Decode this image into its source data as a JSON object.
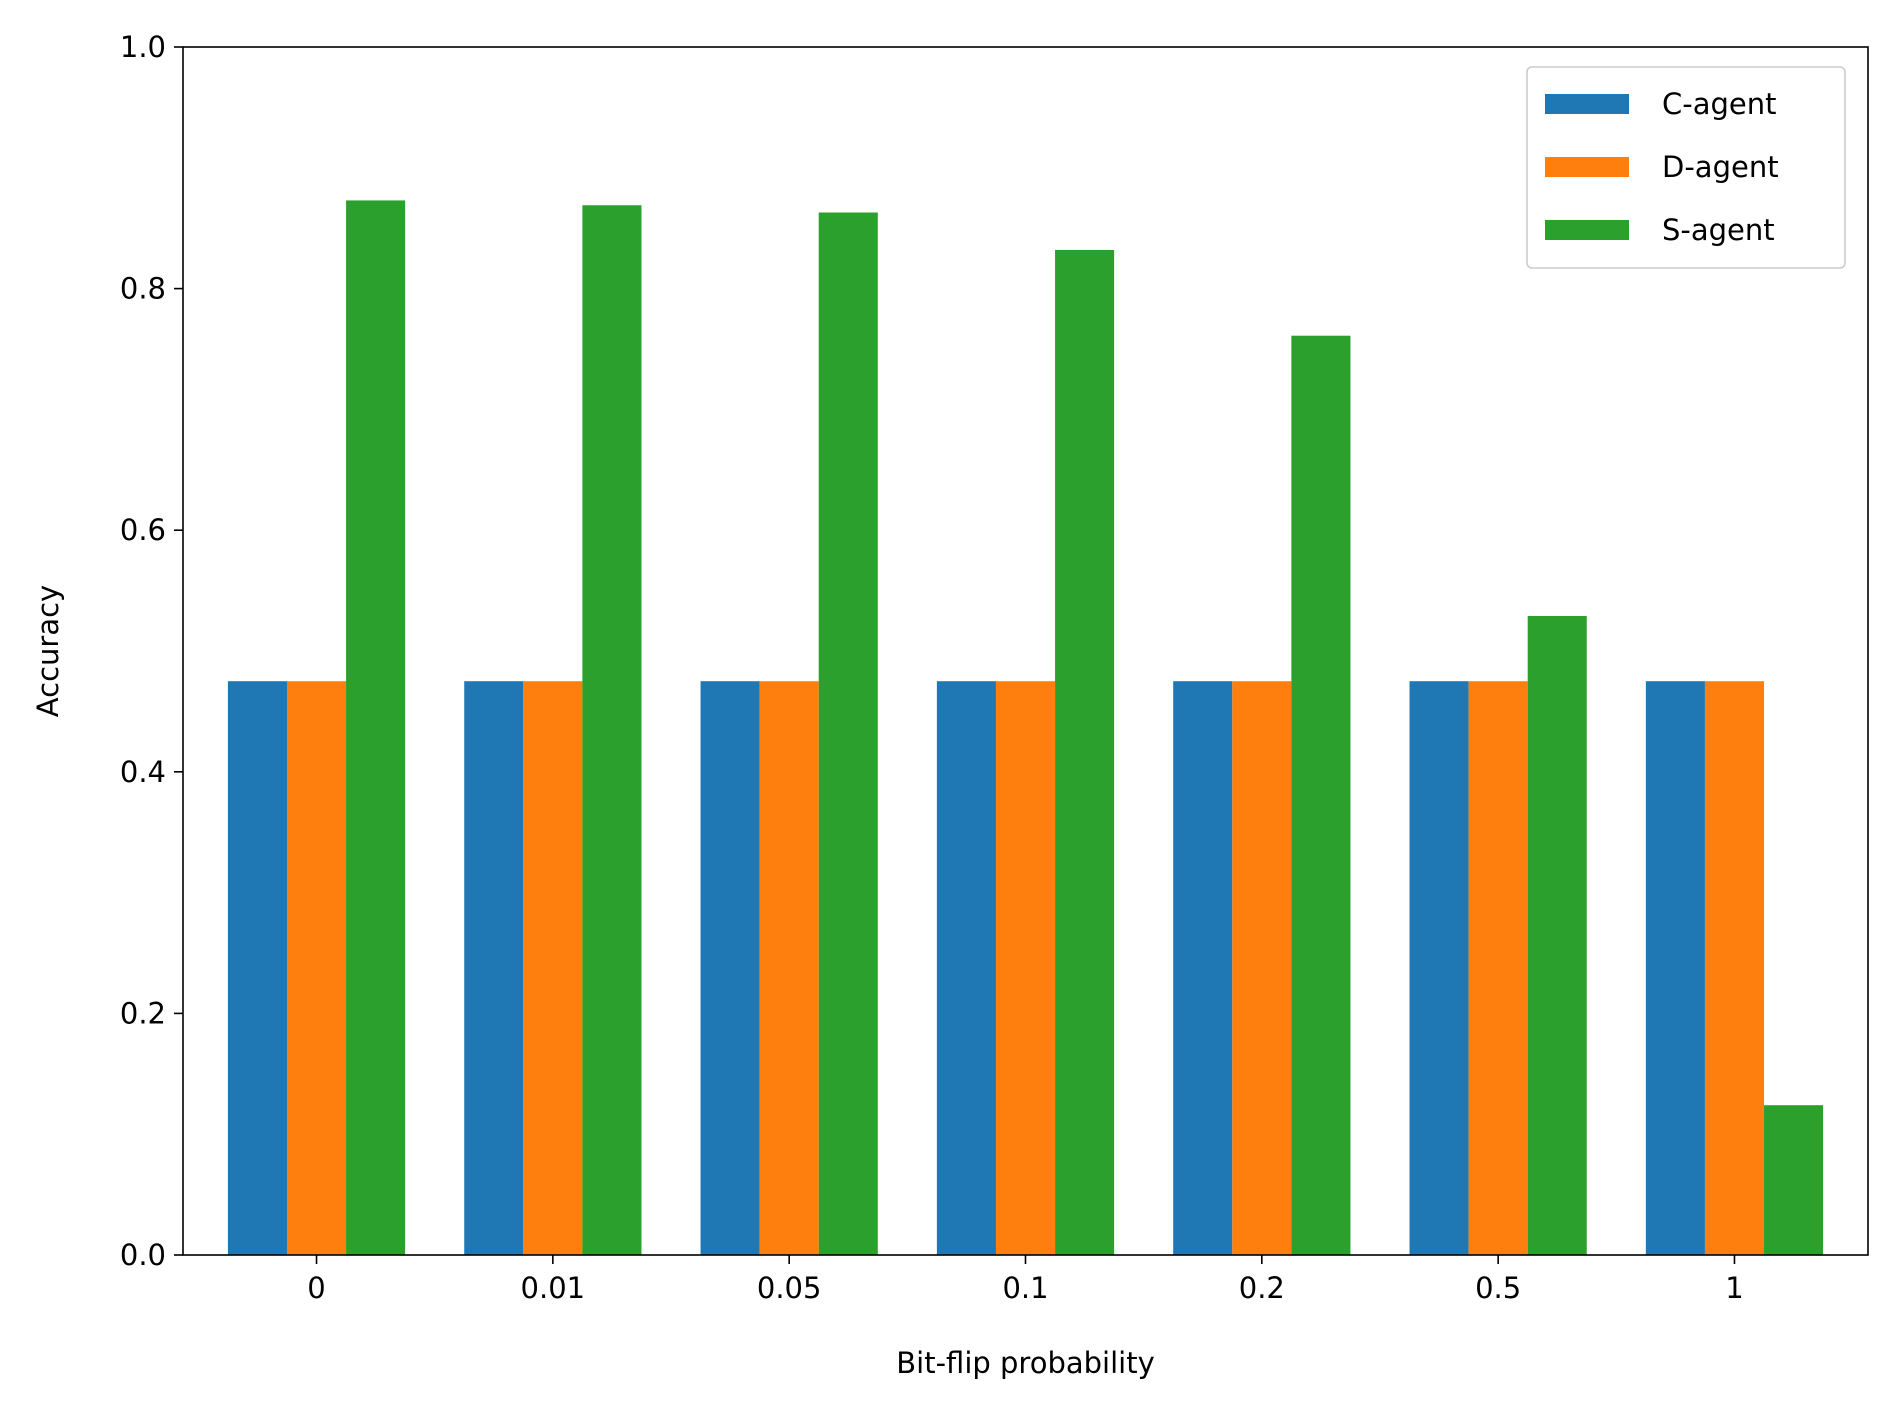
{
  "chart_data": {
    "type": "bar",
    "title": "",
    "xlabel": "Bit-flip probability",
    "ylabel": "Accuracy",
    "categories": [
      "0",
      "0.01",
      "0.05",
      "0.1",
      "0.2",
      "0.5",
      "1"
    ],
    "series": [
      {
        "name": "C-agent",
        "color": "#1f77b4",
        "values": [
          0.475,
          0.475,
          0.475,
          0.475,
          0.475,
          0.475,
          0.475
        ]
      },
      {
        "name": "D-agent",
        "color": "#ff7f0e",
        "values": [
          0.475,
          0.475,
          0.475,
          0.475,
          0.475,
          0.475,
          0.475
        ]
      },
      {
        "name": "S-agent",
        "color": "#2ca02c",
        "values": [
          0.873,
          0.869,
          0.863,
          0.832,
          0.761,
          0.529,
          0.124
        ]
      }
    ],
    "ylim": [
      0,
      1.0
    ],
    "yticks": [
      "0.0",
      "0.2",
      "0.4",
      "0.6",
      "0.8",
      "1.0"
    ],
    "grid": false,
    "legend_position": "top-right"
  }
}
